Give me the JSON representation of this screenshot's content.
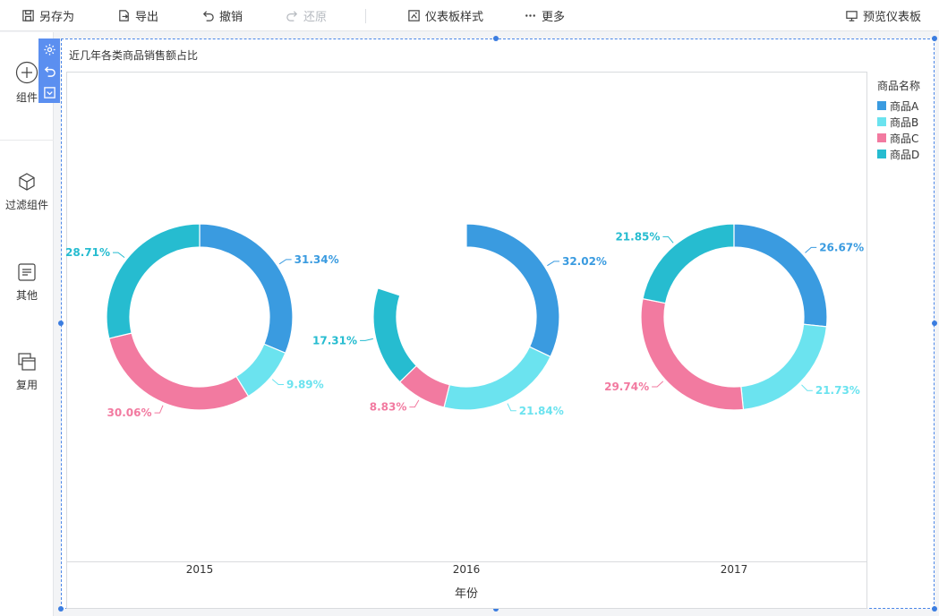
{
  "toolbar": {
    "save_as": "另存为",
    "export": "导出",
    "undo": "撤销",
    "redo": "还原",
    "dashboard_style": "仪表板样式",
    "more": "更多",
    "preview": "预览仪表板"
  },
  "left_panel": {
    "component": "组件",
    "filter_component": "过滤组件",
    "other": "其他",
    "reuse": "复用"
  },
  "widget": {
    "title": "近几年各类商品销售额占比"
  },
  "legend": {
    "title": "商品名称"
  },
  "chart_data": {
    "type": "pie",
    "variant": "donut",
    "title": "近几年各类商品销售额占比",
    "xlabel": "年份",
    "legend_title": "商品名称",
    "legend_position": "top-right",
    "categories": [
      "2015",
      "2016",
      "2017"
    ],
    "series": [
      {
        "name": "商品A",
        "color": "#3a9be0",
        "values": [
          31.34,
          32.02,
          26.67
        ]
      },
      {
        "name": "商品B",
        "color": "#6be3ef",
        "values": [
          9.89,
          21.84,
          21.73
        ]
      },
      {
        "name": "商品C",
        "color": "#f27aa0",
        "values": [
          30.06,
          8.83,
          29.74
        ]
      },
      {
        "name": "商品D",
        "color": "#26bcd0",
        "values": [
          28.71,
          17.31,
          21.85
        ]
      }
    ],
    "labels": [
      [
        "31.34%",
        "9.89%",
        "30.06%",
        "28.71%"
      ],
      [
        "32.02%",
        "21.84%",
        "8.83%",
        "17.31%"
      ],
      [
        "26.67%",
        "21.73%",
        "29.74%",
        "21.85%"
      ]
    ]
  }
}
